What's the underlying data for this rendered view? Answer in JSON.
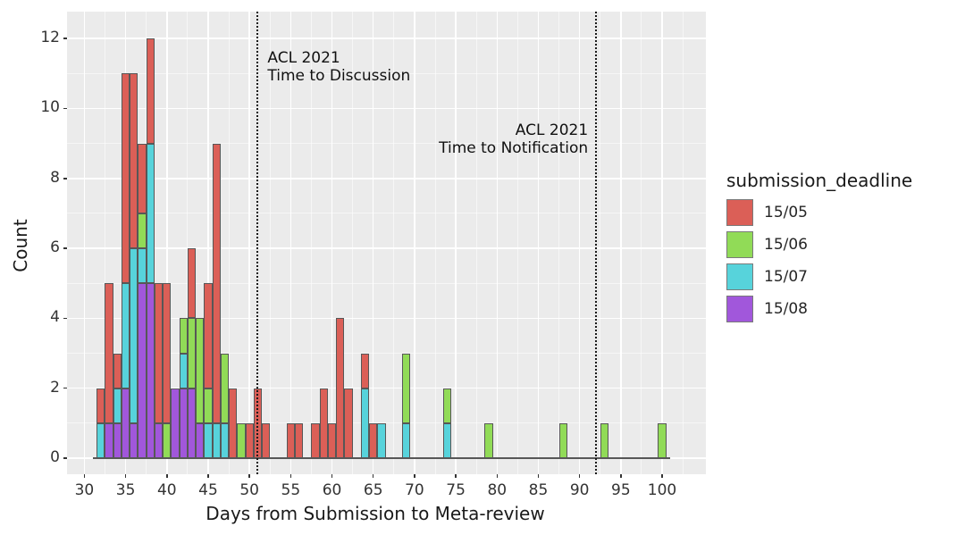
{
  "figure": {
    "xlabel": "Days from Submission to Meta-review",
    "ylabel": "Count"
  },
  "legend": {
    "title": "submission_deadline",
    "items": [
      {
        "label": "15/05",
        "color": "#db5f57"
      },
      {
        "label": "15/06",
        "color": "#91db57"
      },
      {
        "label": "15/07",
        "color": "#57d3db"
      },
      {
        "label": "15/08",
        "color": "#a157db"
      }
    ]
  },
  "chart_data": {
    "type": "bar",
    "subtype": "stacked_histogram",
    "title": "",
    "xlabel": "Days from Submission to Meta-review",
    "ylabel": "Count",
    "xlim": [
      27.9,
      105.3
    ],
    "ylim": [
      -0.46,
      12.77
    ],
    "x_ticks": [
      30,
      35,
      40,
      45,
      50,
      55,
      60,
      65,
      70,
      75,
      80,
      85,
      90,
      95,
      100
    ],
    "y_ticks": [
      0,
      2,
      4,
      6,
      8,
      10,
      12
    ],
    "grid": {
      "major": true,
      "minor": true,
      "color": "white",
      "panel_background": "#ebebeb"
    },
    "legend_position": "right",
    "legend_title": "submission_deadline",
    "bin_width": 1,
    "stack_order_bottom_to_top": [
      "15/08",
      "15/07",
      "15/06",
      "15/05"
    ],
    "colors": {
      "15/05": "#db5f57",
      "15/06": "#91db57",
      "15/07": "#57d3db",
      "15/08": "#a157db"
    },
    "bin_columns": [
      "day",
      "15/08",
      "15/07",
      "15/06",
      "15/05"
    ],
    "bins": [
      [
        32,
        0,
        1,
        0,
        1
      ],
      [
        33,
        1,
        0,
        0,
        4
      ],
      [
        34,
        1,
        1,
        0,
        1
      ],
      [
        35,
        2,
        3,
        0,
        6
      ],
      [
        36,
        1,
        5,
        0,
        5
      ],
      [
        37,
        5,
        1,
        1,
        2
      ],
      [
        38,
        5,
        4,
        0,
        3
      ],
      [
        39,
        1,
        0,
        0,
        4
      ],
      [
        40,
        0,
        0,
        1,
        4
      ],
      [
        41,
        2,
        0,
        0,
        0
      ],
      [
        42,
        2,
        1,
        1,
        0
      ],
      [
        43,
        2,
        0,
        2,
        2
      ],
      [
        44,
        1,
        0,
        3,
        0
      ],
      [
        45,
        0,
        1,
        1,
        3
      ],
      [
        46,
        0,
        1,
        0,
        8
      ],
      [
        47,
        0,
        1,
        2,
        0
      ],
      [
        48,
        0,
        0,
        0,
        2
      ],
      [
        49,
        0,
        0,
        1,
        0
      ],
      [
        50,
        0,
        0,
        0,
        1
      ],
      [
        51,
        0,
        0,
        0,
        2
      ],
      [
        52,
        0,
        0,
        0,
        1
      ],
      [
        55,
        0,
        0,
        0,
        1
      ],
      [
        56,
        0,
        0,
        0,
        1
      ],
      [
        58,
        0,
        0,
        0,
        1
      ],
      [
        59,
        0,
        0,
        0,
        2
      ],
      [
        60,
        0,
        0,
        0,
        1
      ],
      [
        61,
        0,
        0,
        0,
        4
      ],
      [
        62,
        0,
        0,
        0,
        2
      ],
      [
        64,
        0,
        2,
        0,
        1
      ],
      [
        65,
        0,
        0,
        0,
        1
      ],
      [
        66,
        0,
        1,
        0,
        0
      ],
      [
        69,
        0,
        1,
        2,
        0
      ],
      [
        74,
        0,
        1,
        1,
        0
      ],
      [
        79,
        0,
        0,
        1,
        0
      ],
      [
        88,
        0,
        0,
        1,
        0
      ],
      [
        93,
        0,
        0,
        1,
        0
      ],
      [
        100,
        0,
        0,
        1,
        0
      ]
    ],
    "vlines": [
      {
        "x": 51,
        "style": "dotted",
        "label_lines": [
          "ACL 2021",
          "Time to Discussion"
        ],
        "label_side": "right"
      },
      {
        "x": 92,
        "style": "dotted",
        "label_lines": [
          "ACL 2021",
          "Time to Notification"
        ],
        "label_side": "left"
      }
    ]
  }
}
